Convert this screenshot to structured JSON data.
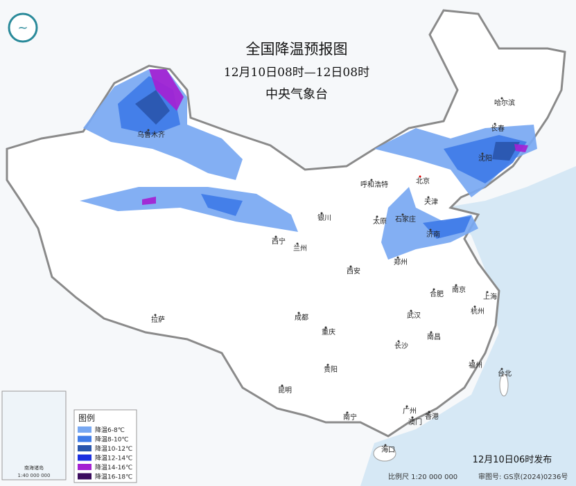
{
  "header": {
    "title": "全国降温预报图",
    "subtitle": "12月10日08时—12日08时",
    "issuer": "中央气象台"
  },
  "legend": {
    "title": "图例",
    "items": [
      {
        "label": "降温6-8℃",
        "color": "#78a8f2"
      },
      {
        "label": "降温8-10℃",
        "color": "#3f7be8"
      },
      {
        "label": "降温10-12℃",
        "color": "#2a56ad"
      },
      {
        "label": "降温12-14℃",
        "color": "#1c2fe0"
      },
      {
        "label": "降温14-16℃",
        "color": "#a421d2"
      },
      {
        "label": "降温16-18℃",
        "color": "#3b0b5e"
      }
    ]
  },
  "cities": [
    "乌鲁木齐",
    "哈尔滨",
    "长春",
    "沈阳",
    "呼和浩特",
    "北京",
    "天津",
    "石家庄",
    "太原",
    "银川",
    "济南",
    "西宁",
    "兰州",
    "郑州",
    "西安",
    "合肥",
    "南京",
    "上海",
    "武汉",
    "杭州",
    "成都",
    "重庆",
    "拉萨",
    "南昌",
    "长沙",
    "贵阳",
    "福州",
    "台北",
    "昆明",
    "南宁",
    "广州",
    "澳门",
    "香港",
    "海口"
  ],
  "inset": {
    "label": "南海诸岛",
    "scale": "1:40 000 000"
  },
  "footer": {
    "issued": "12月10日06时发布",
    "scale": "比例尺 1:20 000 000",
    "approval": "审图号: GS京(2024)0236号"
  }
}
